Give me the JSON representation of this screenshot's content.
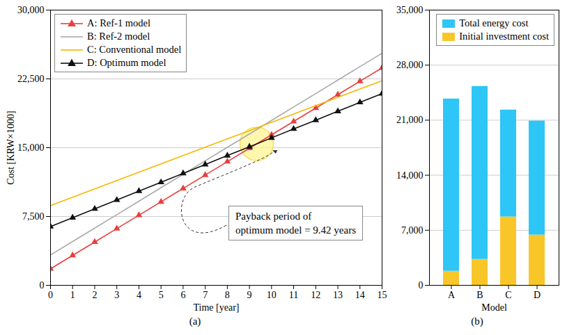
{
  "chart_data": [
    {
      "type": "line",
      "caption": "(a)",
      "x_label": "Time [year]",
      "y_label": "Cost [KRW×1000]",
      "x": [
        0,
        1,
        2,
        3,
        4,
        5,
        6,
        7,
        8,
        9,
        10,
        11,
        12,
        13,
        14,
        15
      ],
      "xlim": [
        0,
        15
      ],
      "xticks": [
        0,
        1,
        2,
        3,
        4,
        5,
        6,
        7,
        8,
        9,
        10,
        11,
        12,
        13,
        14,
        15
      ],
      "ylim": [
        0,
        30000
      ],
      "yticks": [
        0,
        {
          "value": 7500,
          "label": "7,500"
        },
        {
          "value": 15000,
          "label": "15,000"
        },
        {
          "value": 22500,
          "label": "22,500"
        },
        {
          "value": 30000,
          "label": "30,000"
        }
      ],
      "grid": true,
      "legend": "top-left",
      "series": [
        {
          "name": "A: Ref-1 model",
          "color": "#e8403f",
          "marker": "triangle",
          "values": [
            1800,
            3260,
            4720,
            6180,
            7640,
            9100,
            10560,
            12020,
            13480,
            14940,
            16400,
            17860,
            19320,
            20780,
            22240,
            23700
          ]
        },
        {
          "name": "B: Ref-2 model",
          "color": "#aaaaaa",
          "values": [
            3300,
            4770,
            6230,
            7700,
            9170,
            10640,
            12100,
            13570,
            15040,
            16500,
            17970,
            19440,
            20900,
            22370,
            23840,
            25300
          ]
        },
        {
          "name": "C: Conventional model",
          "color": "#f5b800",
          "values": [
            8700,
            9610,
            10510,
            11420,
            12330,
            13230,
            14140,
            15050,
            15960,
            16860,
            17770,
            18680,
            19580,
            20490,
            21400,
            22300
          ]
        },
        {
          "name": "D: Optimum model",
          "color": "#111111",
          "marker": "triangle",
          "values": [
            6400,
            7370,
            8330,
            9300,
            10270,
            11230,
            12200,
            13170,
            14140,
            15100,
            16070,
            17040,
            18000,
            18970,
            19940,
            20900
          ]
        }
      ],
      "annotations": [
        {
          "text": "Payback period of\noptimum model = 9.42 years"
        }
      ]
    },
    {
      "type": "bar",
      "caption": "(b)",
      "x_label": "Model",
      "categories": [
        "A",
        "B",
        "C",
        "D"
      ],
      "ylim": [
        0,
        35000
      ],
      "yticks": [
        0,
        {
          "value": 7000,
          "label": "7,000"
        },
        {
          "value": 14000,
          "label": "14,000"
        },
        {
          "value": 21000,
          "label": "21,000"
        },
        {
          "value": 28000,
          "label": "28,000"
        },
        {
          "value": 35000,
          "label": "35,000"
        }
      ],
      "grid": true,
      "stacked": true,
      "legend": "top-right",
      "series": [
        {
          "name": "Total energy cost",
          "color": "#2ec6f6",
          "values": [
            21900,
            22000,
            13600,
            14500
          ]
        },
        {
          "name": "Initial investment cost",
          "color": "#f9c62a",
          "values": [
            1800,
            3300,
            8700,
            6400
          ]
        }
      ]
    }
  ]
}
